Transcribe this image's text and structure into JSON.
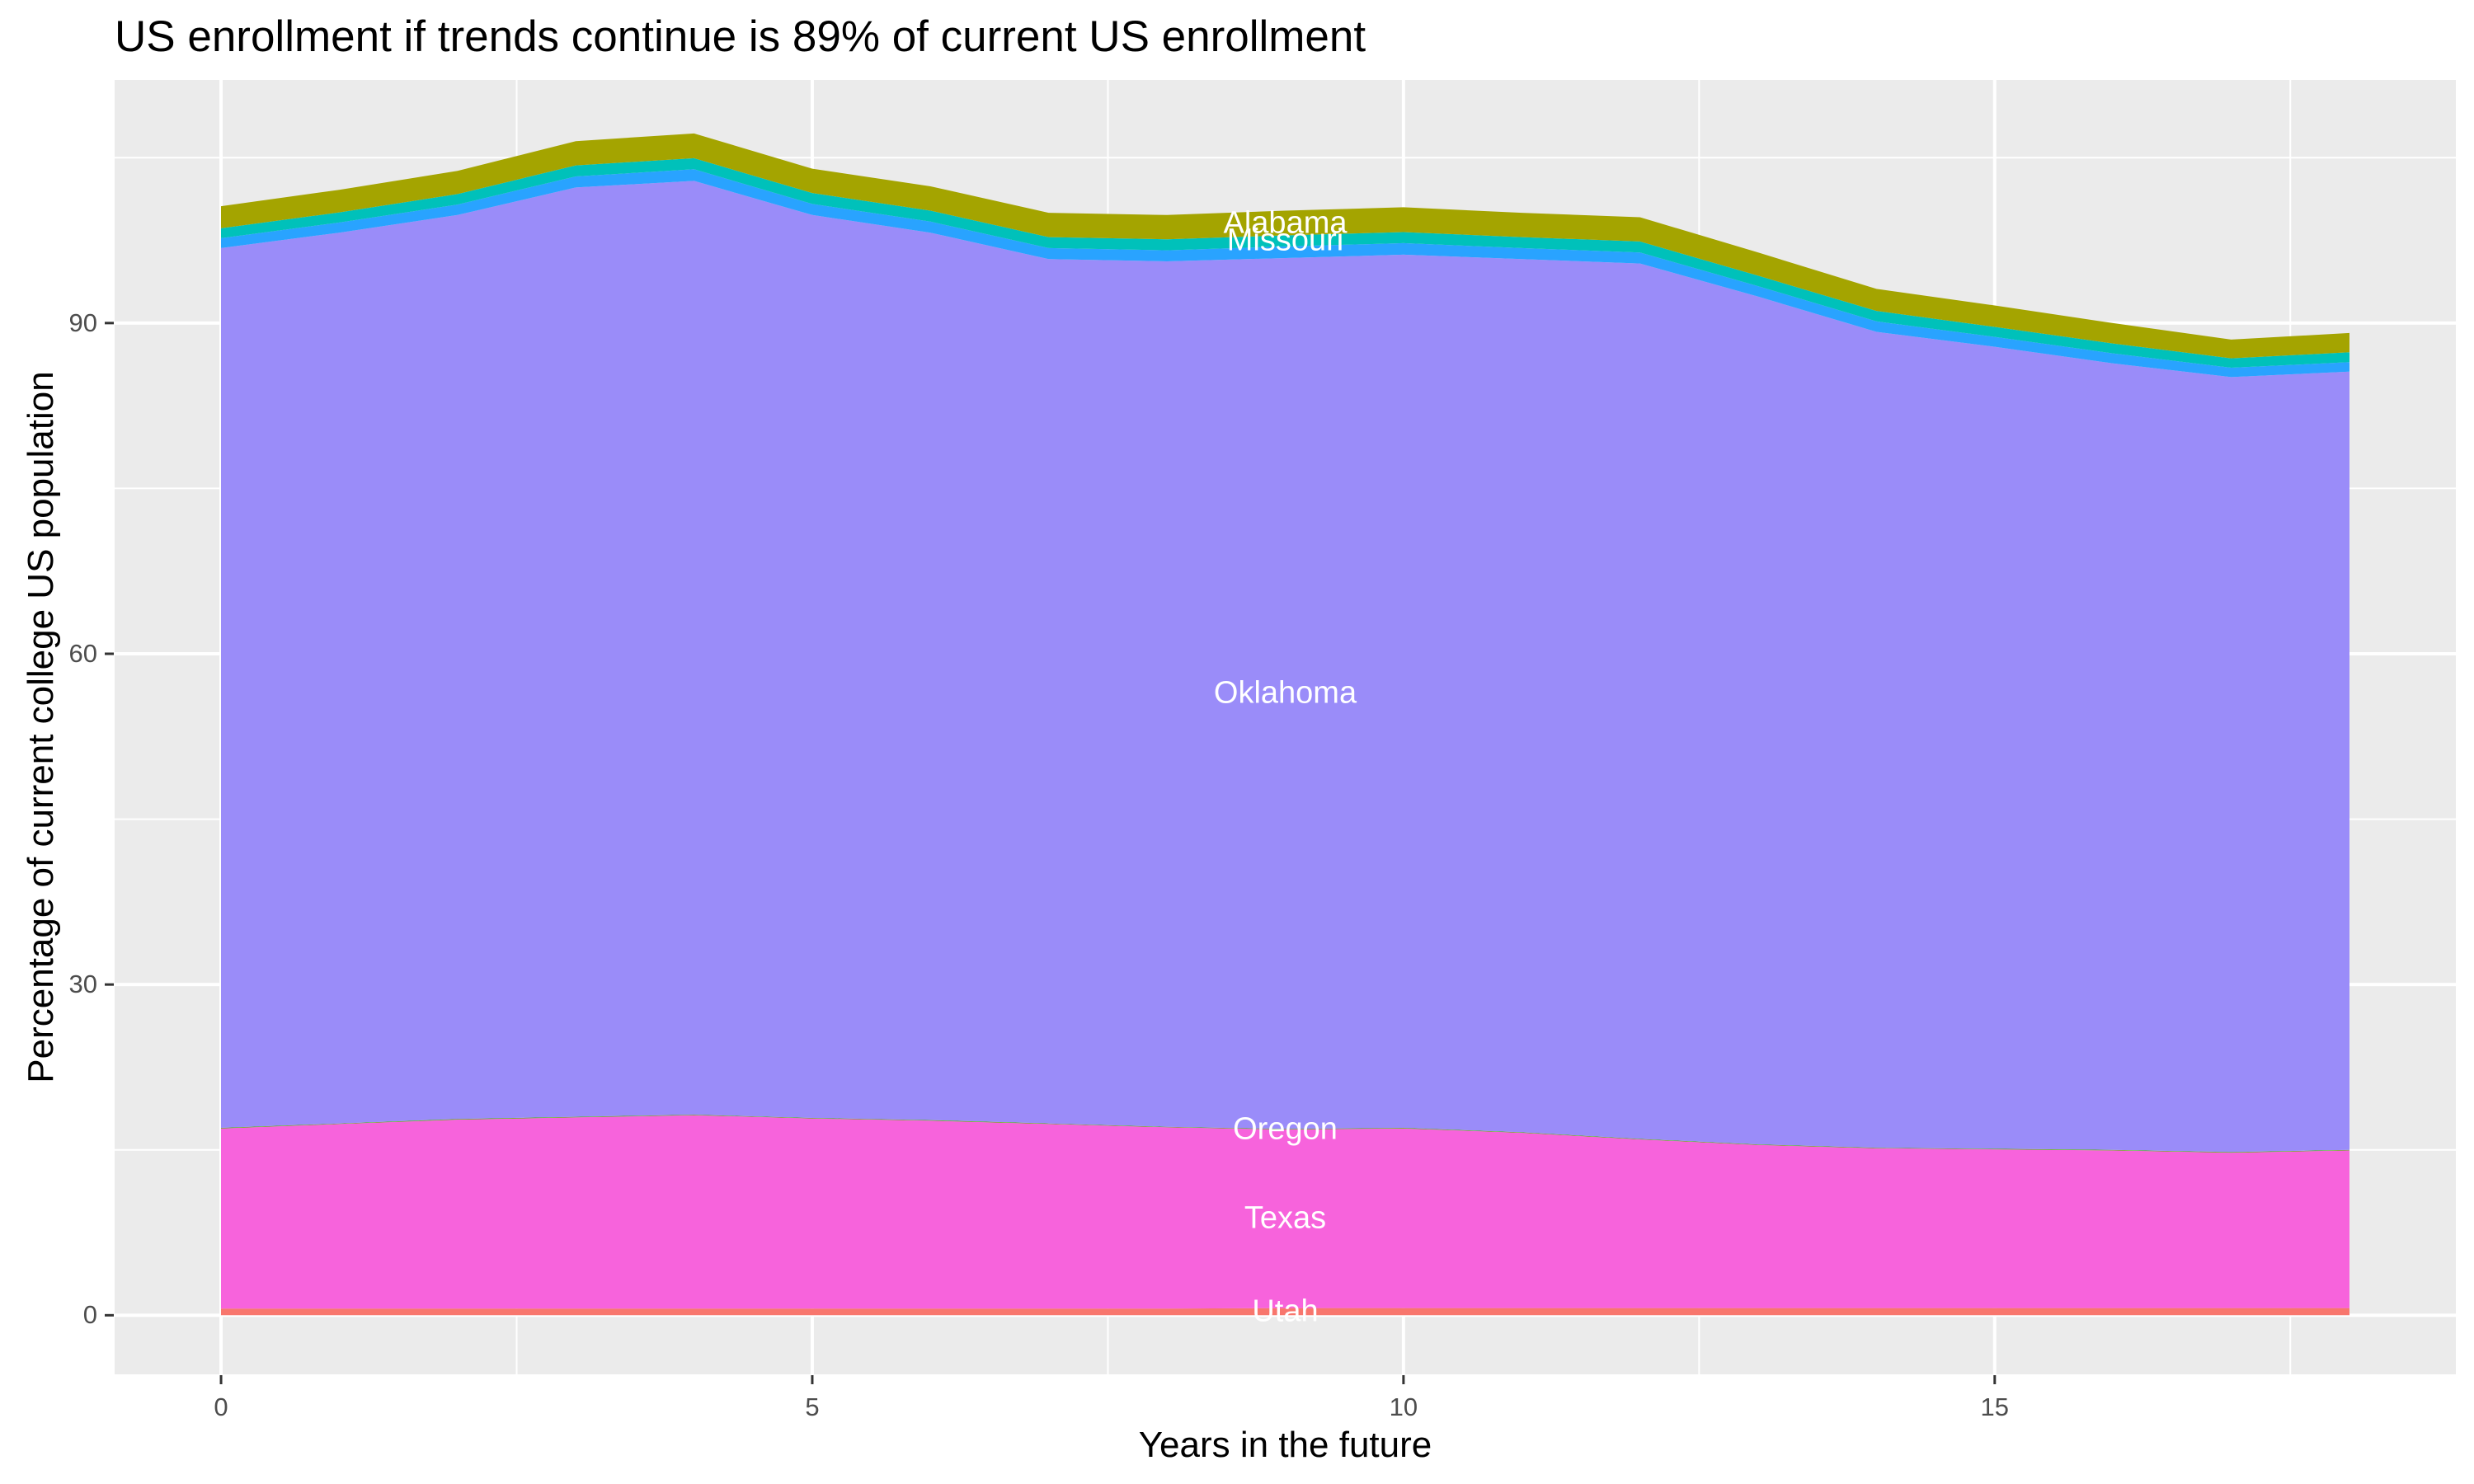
{
  "title": "US enrollment if trends continue is 89% of current US enrollment",
  "chart_data": {
    "type": "area",
    "stacked": true,
    "title": "US enrollment if trends continue is 89% of current US enrollment",
    "xlabel": "Years in the future",
    "ylabel": "Percentage of current college US population",
    "x": [
      0,
      1,
      2,
      3,
      4,
      5,
      6,
      7,
      8,
      9,
      10,
      11,
      12,
      13,
      14,
      15,
      16,
      17,
      18
    ],
    "x_ticks": [
      "0",
      "5",
      "10",
      "15"
    ],
    "x_tick_values": [
      0,
      5,
      10,
      15
    ],
    "x_minor_values": [
      2.5,
      7.5,
      12.5,
      17.5
    ],
    "y_ticks": [
      "0",
      "30",
      "60",
      "90"
    ],
    "y_tick_values": [
      0,
      30,
      60,
      90
    ],
    "y_minor_values": [
      15,
      45,
      75,
      105
    ],
    "xlim": [
      -0.9,
      18.9
    ],
    "ylim": [
      -5.36,
      112.05
    ],
    "grid": true,
    "legend": "none",
    "label_x": 9,
    "series": [
      {
        "name": "Utah",
        "color": "#F8766D",
        "values": [
          0.6,
          0.6,
          0.6,
          0.6,
          0.6,
          0.6,
          0.6,
          0.6,
          0.6,
          0.65,
          0.65,
          0.65,
          0.65,
          0.65,
          0.65,
          0.65,
          0.65,
          0.65,
          0.65
        ]
      },
      {
        "name": "Texas",
        "color": "#F763DC",
        "values": [
          16.35,
          16.75,
          17.15,
          17.35,
          17.55,
          17.25,
          17.05,
          16.75,
          16.45,
          16.2,
          16.3,
          15.9,
          15.3,
          14.8,
          14.5,
          14.4,
          14.3,
          14.1,
          14.3
        ]
      },
      {
        "name": "Oregon",
        "color": "#53B400",
        "values": [
          0.05,
          0.05,
          0.05,
          0.05,
          0.05,
          0.05,
          0.05,
          0.05,
          0.05,
          0.05,
          0.05,
          0.05,
          0.05,
          0.05,
          0.05,
          0.05,
          0.05,
          0.05,
          0.05
        ]
      },
      {
        "name": "Oklahoma",
        "color": "#9A8CF9",
        "values": [
          79.8,
          80.8,
          82.0,
          84.3,
          84.7,
          81.9,
          80.5,
          78.4,
          78.5,
          79.0,
          79.2,
          79.2,
          79.4,
          76.9,
          74.0,
          72.75,
          71.35,
          70.3,
          70.6
        ]
      },
      {
        "name": "",
        "color": "#29A3FF",
        "values": [
          0.9,
          0.92,
          0.95,
          1.0,
          1.05,
          1.0,
          1.0,
          1.0,
          1.0,
          1.05,
          1.05,
          1.0,
          1.0,
          0.95,
          0.95,
          0.9,
          0.9,
          0.85,
          0.85
        ]
      },
      {
        "name": "Missouri",
        "color": "#00C1BA",
        "values": [
          0.9,
          0.92,
          0.95,
          1.0,
          1.0,
          1.0,
          1.0,
          1.0,
          1.0,
          1.0,
          1.0,
          1.0,
          1.0,
          0.95,
          0.95,
          0.9,
          0.9,
          0.85,
          0.9
        ]
      },
      {
        "name": "Alabama",
        "color": "#A4A400",
        "values": [
          2.0,
          2.05,
          2.1,
          2.2,
          2.25,
          2.2,
          2.2,
          2.2,
          2.2,
          2.25,
          2.25,
          2.2,
          2.2,
          2.1,
          2.0,
          1.95,
          1.85,
          1.7,
          1.75
        ]
      }
    ],
    "colors": {
      "panel_background": "#EBEBEB",
      "gridline": "#FFFFFF",
      "tick_mark": "#333333",
      "tick_text": "#4D4D4D",
      "title_text": "#000000",
      "area_label_text": "#FFFFFF"
    }
  }
}
